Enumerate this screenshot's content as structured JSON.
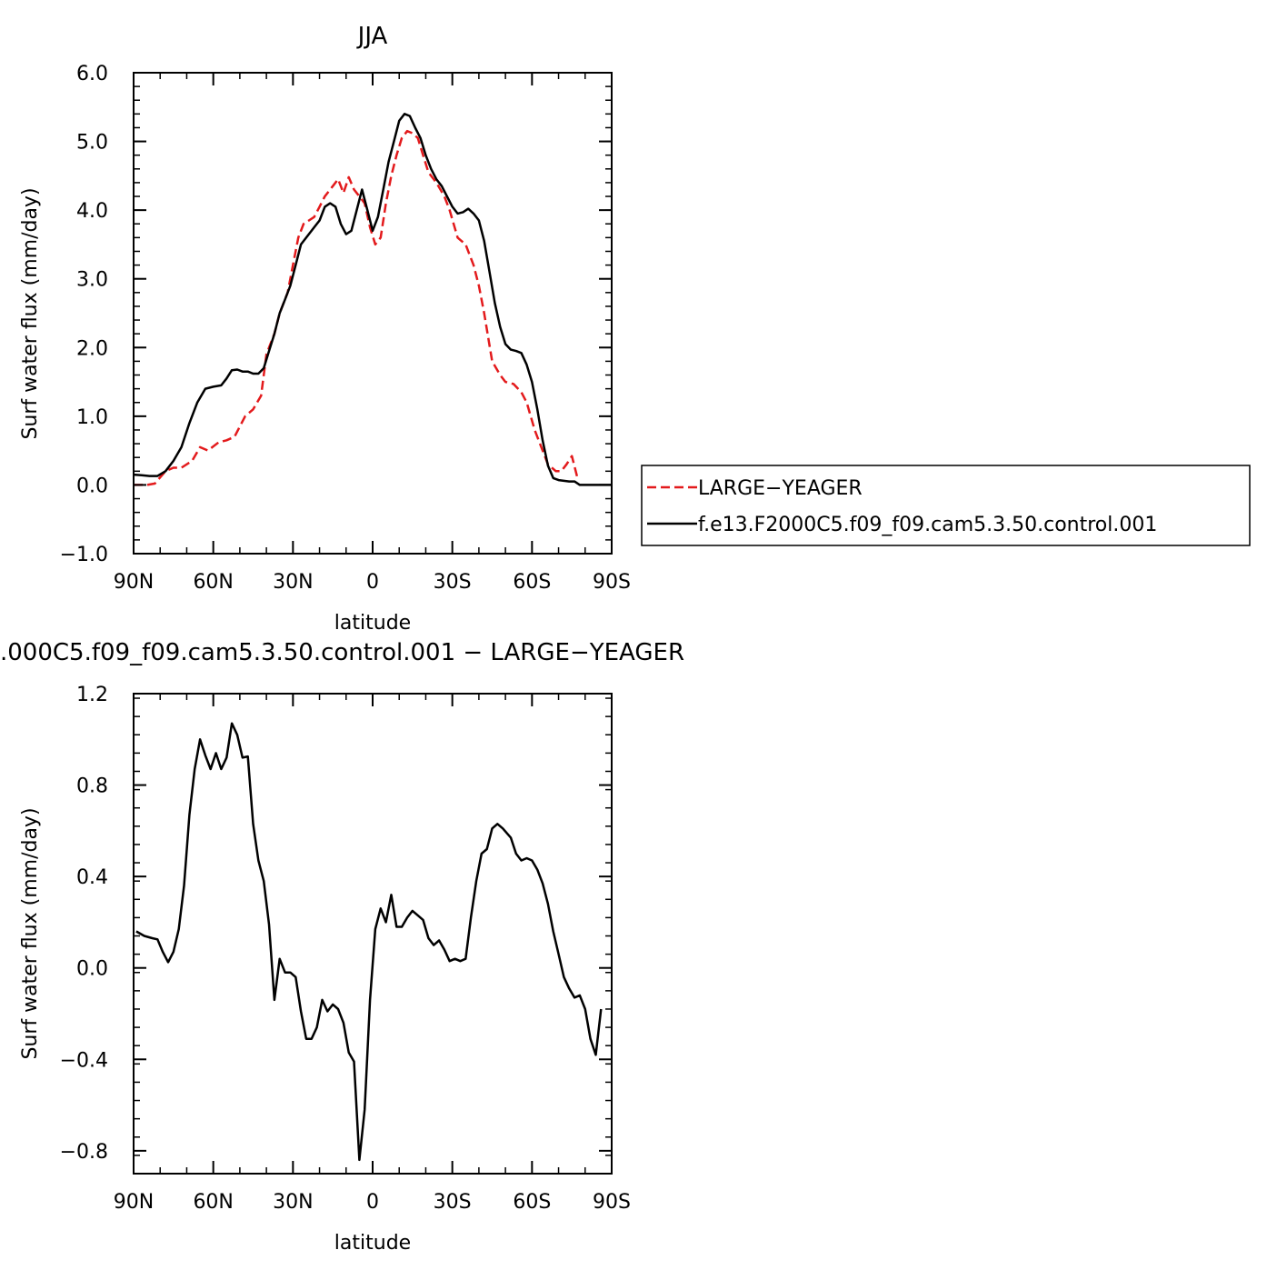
{
  "chart_data": [
    {
      "type": "line",
      "title": "JJA",
      "xlabel": "latitude",
      "ylabel": "Surf water flux (mm/day)",
      "xlim": [
        90,
        -90
      ],
      "ylim": [
        -1.0,
        6.0
      ],
      "xticks": [
        90,
        60,
        30,
        0,
        -30,
        -60,
        -90
      ],
      "xticklabels": [
        "90N",
        "60N",
        "30N",
        "0",
        "30S",
        "60S",
        "90S"
      ],
      "yticks": [
        -1.0,
        0.0,
        1.0,
        2.0,
        3.0,
        4.0,
        5.0,
        6.0
      ],
      "yticklabels": [
        "−1.0",
        "0.0",
        "1.0",
        "2.0",
        "3.0",
        "4.0",
        "5.0",
        "6.0"
      ],
      "legend": "right",
      "series": [
        {
          "name": "LARGE−YEAGER",
          "color": "#e31a1c",
          "style": "dashed",
          "points": [
            [
              90,
              0.0
            ],
            [
              85,
              0.0
            ],
            [
              82,
              0.02
            ],
            [
              78,
              0.2
            ],
            [
              75,
              0.25
            ],
            [
              72,
              0.25
            ],
            [
              68,
              0.35
            ],
            [
              65,
              0.55
            ],
            [
              62,
              0.5
            ],
            [
              58,
              0.62
            ],
            [
              55,
              0.65
            ],
            [
              52,
              0.7
            ],
            [
              48,
              1.0
            ],
            [
              45,
              1.1
            ],
            [
              42,
              1.3
            ],
            [
              40,
              1.9
            ],
            [
              37,
              2.2
            ],
            [
              35,
              2.5
            ],
            [
              32,
              2.8
            ],
            [
              30,
              3.2
            ],
            [
              28,
              3.6
            ],
            [
              26,
              3.8
            ],
            [
              24,
              3.85
            ],
            [
              22,
              3.9
            ],
            [
              20,
              4.05
            ],
            [
              18,
              4.2
            ],
            [
              15,
              4.35
            ],
            [
              13,
              4.45
            ],
            [
              11,
              4.25
            ],
            [
              9,
              4.48
            ],
            [
              7,
              4.3
            ],
            [
              5,
              4.2
            ],
            [
              3,
              4.1
            ],
            [
              1,
              3.75
            ],
            [
              -1,
              3.5
            ],
            [
              -3,
              3.6
            ],
            [
              -5,
              4.1
            ],
            [
              -7,
              4.5
            ],
            [
              -9,
              4.8
            ],
            [
              -11,
              5.05
            ],
            [
              -13,
              5.15
            ],
            [
              -15,
              5.12
            ],
            [
              -17,
              5.05
            ],
            [
              -19,
              4.8
            ],
            [
              -21,
              4.55
            ],
            [
              -24,
              4.4
            ],
            [
              -27,
              4.2
            ],
            [
              -29,
              4.0
            ],
            [
              -32,
              3.6
            ],
            [
              -35,
              3.5
            ],
            [
              -38,
              3.2
            ],
            [
              -40,
              2.9
            ],
            [
              -42,
              2.5
            ],
            [
              -45,
              1.8
            ],
            [
              -48,
              1.6
            ],
            [
              -50,
              1.5
            ],
            [
              -53,
              1.47
            ],
            [
              -56,
              1.35
            ],
            [
              -58,
              1.2
            ],
            [
              -61,
              0.8
            ],
            [
              -64,
              0.5
            ],
            [
              -66,
              0.3
            ],
            [
              -69,
              0.2
            ],
            [
              -71,
              0.2
            ],
            [
              -73,
              0.3
            ],
            [
              -75,
              0.42
            ],
            [
              -77,
              0.12
            ]
          ]
        },
        {
          "name": "f.e13.F2000C5.f09_f09.cam5.3.50.control.001",
          "color": "#000000",
          "style": "solid",
          "points": [
            [
              90,
              0.15
            ],
            [
              87,
              0.14
            ],
            [
              84,
              0.13
            ],
            [
              81,
              0.13
            ],
            [
              78,
              0.2
            ],
            [
              75,
              0.35
            ],
            [
              72,
              0.55
            ],
            [
              69,
              0.9
            ],
            [
              66,
              1.2
            ],
            [
              63,
              1.4
            ],
            [
              60,
              1.43
            ],
            [
              57,
              1.45
            ],
            [
              55,
              1.55
            ],
            [
              53,
              1.67
            ],
            [
              51,
              1.68
            ],
            [
              49,
              1.65
            ],
            [
              47,
              1.65
            ],
            [
              45,
              1.62
            ],
            [
              43,
              1.62
            ],
            [
              41,
              1.7
            ],
            [
              39,
              1.95
            ],
            [
              37,
              2.2
            ],
            [
              35,
              2.5
            ],
            [
              33,
              2.7
            ],
            [
              31,
              2.9
            ],
            [
              29,
              3.2
            ],
            [
              27,
              3.5
            ],
            [
              25,
              3.6
            ],
            [
              22,
              3.75
            ],
            [
              20,
              3.85
            ],
            [
              18,
              4.05
            ],
            [
              16,
              4.1
            ],
            [
              14,
              4.05
            ],
            [
              12,
              3.8
            ],
            [
              10,
              3.65
            ],
            [
              8,
              3.7
            ],
            [
              6,
              4.0
            ],
            [
              4,
              4.3
            ],
            [
              2,
              4.0
            ],
            [
              0,
              3.7
            ],
            [
              -2,
              3.9
            ],
            [
              -4,
              4.3
            ],
            [
              -6,
              4.7
            ],
            [
              -8,
              5.0
            ],
            [
              -10,
              5.3
            ],
            [
              -12,
              5.4
            ],
            [
              -14,
              5.37
            ],
            [
              -16,
              5.2
            ],
            [
              -18,
              5.05
            ],
            [
              -20,
              4.8
            ],
            [
              -22,
              4.6
            ],
            [
              -24,
              4.45
            ],
            [
              -26,
              4.35
            ],
            [
              -28,
              4.2
            ],
            [
              -30,
              4.05
            ],
            [
              -32,
              3.95
            ],
            [
              -34,
              3.97
            ],
            [
              -36,
              4.02
            ],
            [
              -38,
              3.95
            ],
            [
              -40,
              3.85
            ],
            [
              -42,
              3.55
            ],
            [
              -44,
              3.1
            ],
            [
              -46,
              2.65
            ],
            [
              -48,
              2.3
            ],
            [
              -50,
              2.05
            ],
            [
              -52,
              1.97
            ],
            [
              -54,
              1.95
            ],
            [
              -56,
              1.92
            ],
            [
              -58,
              1.75
            ],
            [
              -60,
              1.5
            ],
            [
              -62,
              1.1
            ],
            [
              -64,
              0.65
            ],
            [
              -66,
              0.28
            ],
            [
              -68,
              0.1
            ],
            [
              -70,
              0.07
            ],
            [
              -74,
              0.05
            ],
            [
              -76,
              0.05
            ],
            [
              -78,
              0.0
            ],
            [
              -82,
              0.0
            ],
            [
              -90,
              0.0
            ]
          ]
        }
      ]
    },
    {
      "type": "line",
      "title": ".000C5.f09_f09.cam5.3.50.control.001  −  LARGE−YEAGER",
      "xlabel": "latitude",
      "ylabel": "Surf water flux (mm/day)",
      "xlim": [
        90,
        -90
      ],
      "ylim": [
        -0.9,
        1.2
      ],
      "xticks": [
        90,
        60,
        30,
        0,
        -30,
        -60,
        -90
      ],
      "xticklabels": [
        "90N",
        "60N",
        "30N",
        "0",
        "30S",
        "60S",
        "90S"
      ],
      "yticks": [
        -0.8,
        -0.4,
        0.0,
        0.4,
        0.8,
        1.2
      ],
      "yticklabels": [
        "−0.8",
        "−0.4",
        "0.0",
        "0.4",
        "0.8",
        "1.2"
      ],
      "series": [
        {
          "color": "#000000",
          "style": "solid",
          "points": [
            [
              89,
              0.16
            ],
            [
              86,
              0.14
            ],
            [
              83,
              0.13
            ],
            [
              81,
              0.125
            ],
            [
              79,
              0.07
            ],
            [
              77,
              0.025
            ],
            [
              75,
              0.07
            ],
            [
              73,
              0.17
            ],
            [
              71,
              0.36
            ],
            [
              69,
              0.67
            ],
            [
              67,
              0.87
            ],
            [
              65,
              1.0
            ],
            [
              63,
              0.93
            ],
            [
              61,
              0.87
            ],
            [
              59,
              0.94
            ],
            [
              57,
              0.87
            ],
            [
              55,
              0.92
            ],
            [
              53,
              1.07
            ],
            [
              51,
              1.02
            ],
            [
              49,
              0.92
            ],
            [
              47,
              0.925
            ],
            [
              45,
              0.63
            ],
            [
              43,
              0.47
            ],
            [
              41,
              0.38
            ],
            [
              39,
              0.19
            ],
            [
              37,
              -0.14
            ],
            [
              35,
              0.04
            ],
            [
              33,
              -0.02
            ],
            [
              31,
              -0.02
            ],
            [
              29,
              -0.04
            ],
            [
              27,
              -0.19
            ],
            [
              25,
              -0.31
            ],
            [
              23,
              -0.31
            ],
            [
              21,
              -0.26
            ],
            [
              19,
              -0.14
            ],
            [
              17,
              -0.19
            ],
            [
              15,
              -0.16
            ],
            [
              13,
              -0.18
            ],
            [
              11,
              -0.24
            ],
            [
              9,
              -0.37
            ],
            [
              7,
              -0.41
            ],
            [
              5,
              -0.84
            ],
            [
              3,
              -0.62
            ],
            [
              1,
              -0.14
            ],
            [
              -1,
              0.17
            ],
            [
              -3,
              0.26
            ],
            [
              -5,
              0.2
            ],
            [
              -7,
              0.32
            ],
            [
              -9,
              0.18
            ],
            [
              -11,
              0.18
            ],
            [
              -13,
              0.22
            ],
            [
              -15,
              0.25
            ],
            [
              -17,
              0.23
            ],
            [
              -19,
              0.21
            ],
            [
              -21,
              0.13
            ],
            [
              -23,
              0.1
            ],
            [
              -25,
              0.12
            ],
            [
              -27,
              0.08
            ],
            [
              -29,
              0.03
            ],
            [
              -31,
              0.04
            ],
            [
              -33,
              0.03
            ],
            [
              -35,
              0.04
            ],
            [
              -37,
              0.22
            ],
            [
              -39,
              0.38
            ],
            [
              -41,
              0.5
            ],
            [
              -43,
              0.52
            ],
            [
              -45,
              0.61
            ],
            [
              -47,
              0.63
            ],
            [
              -49,
              0.61
            ],
            [
              -52,
              0.57
            ],
            [
              -54,
              0.5
            ],
            [
              -56,
              0.47
            ],
            [
              -58,
              0.48
            ],
            [
              -60,
              0.47
            ],
            [
              -62,
              0.43
            ],
            [
              -64,
              0.37
            ],
            [
              -66,
              0.28
            ],
            [
              -68,
              0.16
            ],
            [
              -70,
              0.06
            ],
            [
              -72,
              -0.04
            ],
            [
              -74,
              -0.09
            ],
            [
              -76,
              -0.13
            ],
            [
              -78,
              -0.12
            ],
            [
              -80,
              -0.18
            ],
            [
              -82,
              -0.31
            ],
            [
              -84,
              -0.38
            ],
            [
              -86,
              -0.18
            ]
          ]
        }
      ]
    }
  ]
}
